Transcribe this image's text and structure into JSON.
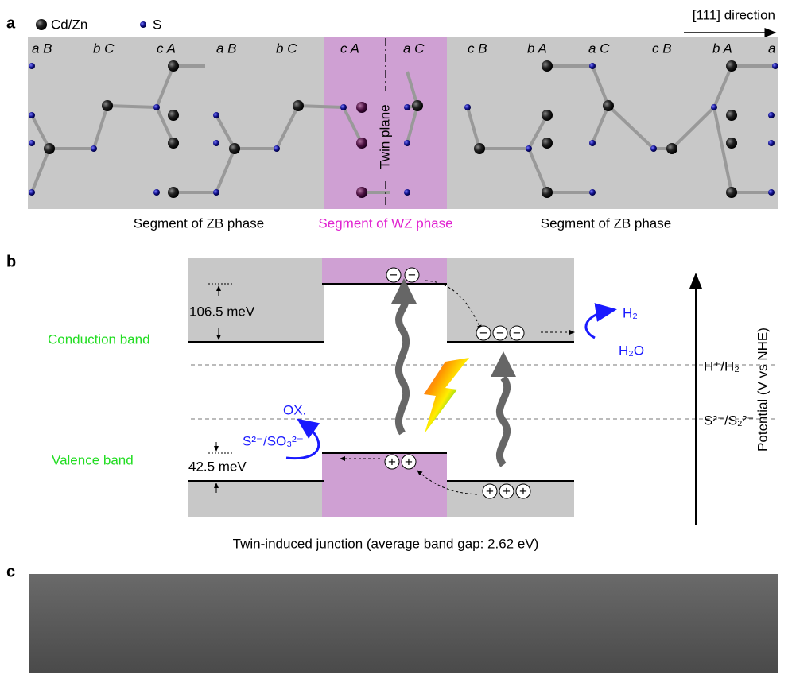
{
  "panel_a": {
    "label": "a",
    "legend": [
      "Cd/Zn",
      "S"
    ],
    "direction": "[111] direction",
    "stacking": [
      "a B",
      "b C",
      "c A",
      "a B",
      "b C",
      "c A",
      "a C",
      "c B",
      "b A",
      "a C",
      "c B",
      "b A",
      "a"
    ],
    "twin_plane": "Twin plane",
    "segments": [
      "Segment of ZB phase",
      "Segment of WZ phase",
      "Segment of ZB phase"
    ]
  },
  "panel_b": {
    "label": "b",
    "conduction_band": "Conduction band",
    "valence_band": "Valence band",
    "cb_offset": "106.5 meV",
    "vb_offset": "42.5 meV",
    "h2": "H₂",
    "h2o": "H₂O",
    "ox": "OX.",
    "sacrificial": "S²⁻/SO₃²⁻",
    "h_couple": "H⁺/H₂",
    "s_couple": "S²⁻/S₂²⁻",
    "axis_label": "Potential (V vs NHE)",
    "caption": "Twin-induced junction (average band gap: 2.62 eV)",
    "electron": "−",
    "hole": "+"
  },
  "panel_c": {
    "label": "c"
  }
}
